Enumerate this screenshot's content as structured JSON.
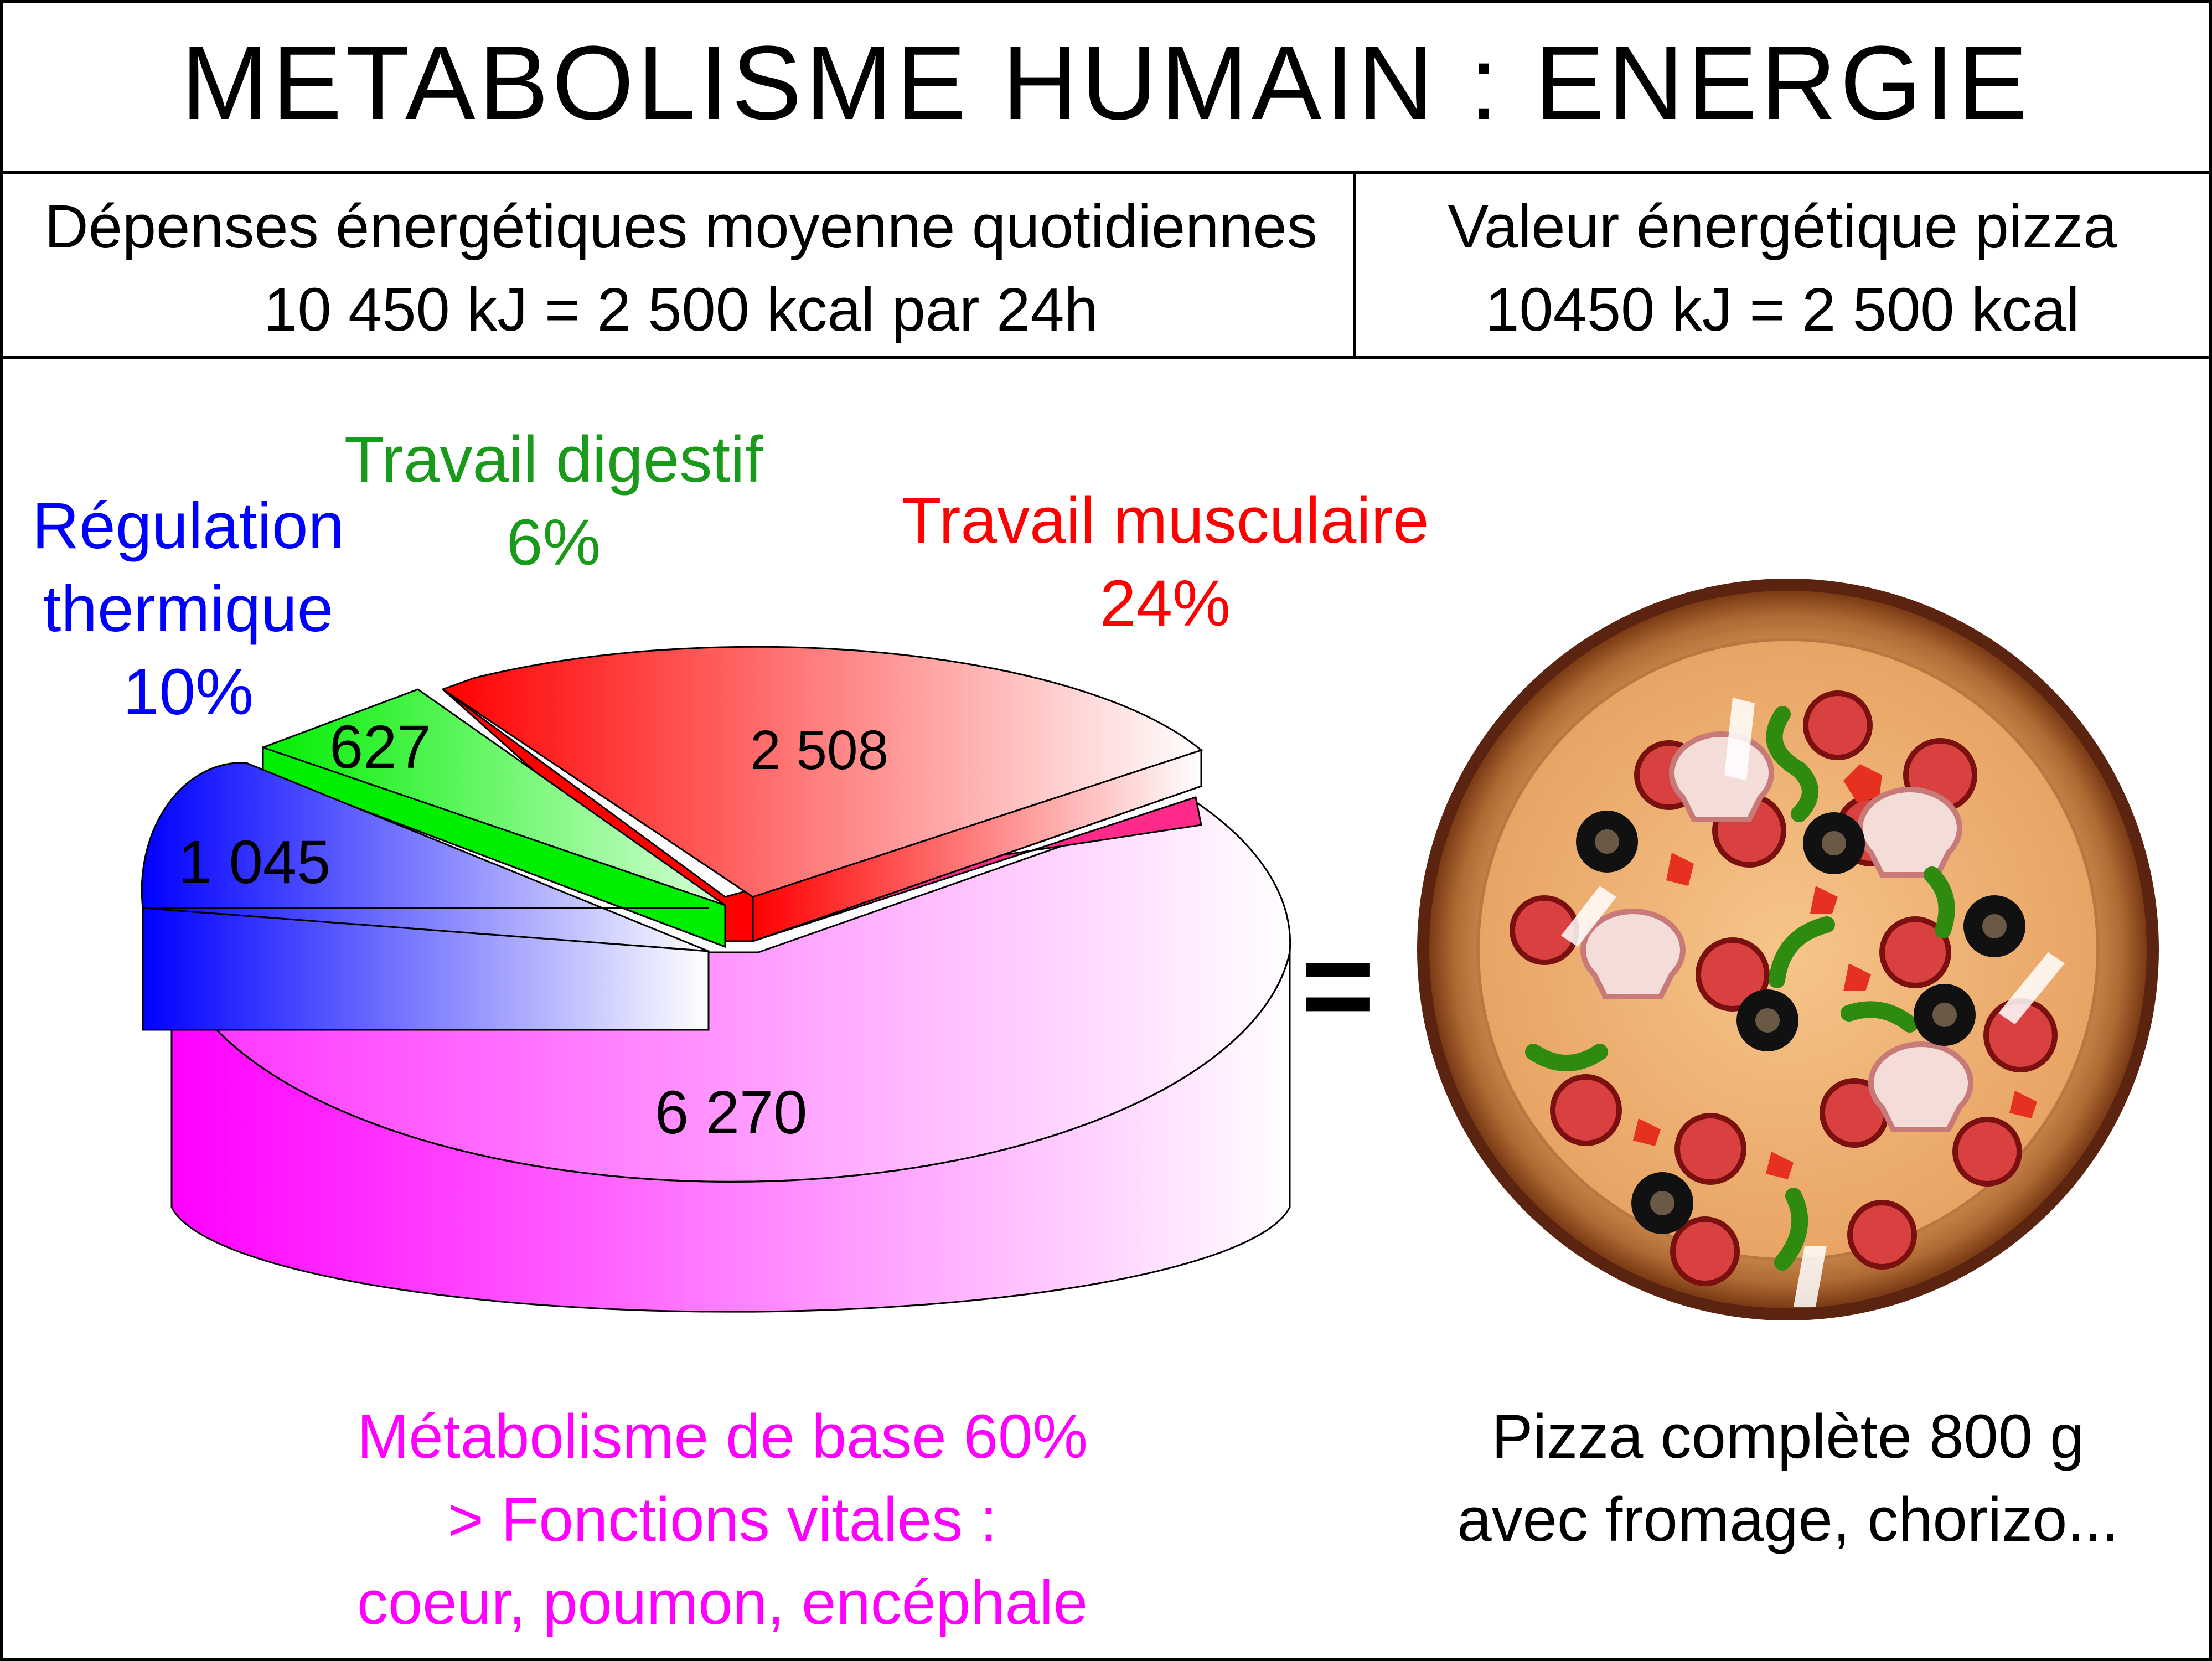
{
  "title": "METABOLISME HUMAIN : ENERGIE",
  "header": {
    "left": {
      "line1": "Dépenses énergétiques moyenne quotidiennes",
      "line2": "10 450 kJ = 2 500 kcal par 24h"
    },
    "right": {
      "line1": "Valeur énergétique pizza",
      "line2": "10450 kJ = 2 500 kcal"
    }
  },
  "chart_data": {
    "type": "pie",
    "slices": [
      {
        "label_lines": [
          "Métabolisme de base 60%",
          "> Fonctions vitales :",
          "coeur, poumon, encéphale"
        ],
        "percent": 60,
        "value": "6 270",
        "color": "#ff00ff"
      },
      {
        "label_lines": [
          "Travail musculaire",
          "24%"
        ],
        "percent": 24,
        "value": "2 508",
        "color": "#ff0000"
      },
      {
        "label_lines": [
          "Travail digestif",
          "6%"
        ],
        "percent": 6,
        "value": "627",
        "color": "#00ee00"
      },
      {
        "label_lines": [
          "Régulation",
          "thermique",
          "10%"
        ],
        "percent": 10,
        "value": "1 045",
        "color": "#0000ff"
      }
    ]
  },
  "equals": "=",
  "pizza_caption": {
    "line1": "Pizza complète 800 g",
    "line2": "avec fromage, chorizo..."
  },
  "pizza_icon": "pizza-illustration"
}
